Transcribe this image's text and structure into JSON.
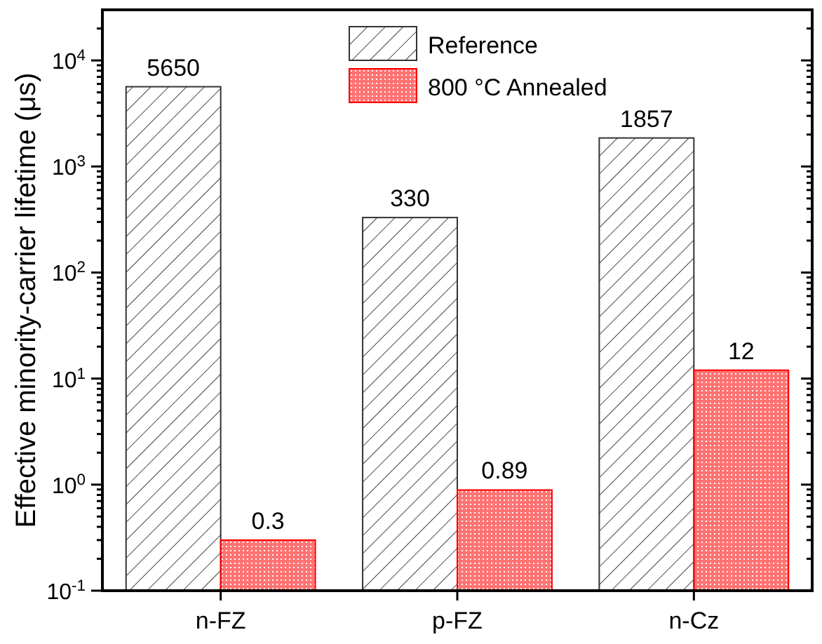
{
  "chart_data": {
    "type": "bar",
    "ylabel": "Effective minority-carrier lifetime (μs)",
    "categories": [
      "n-FZ",
      "p-FZ",
      "n-Cz"
    ],
    "series": [
      {
        "name": "Reference",
        "color": "#333333",
        "values": [
          5650,
          330,
          1857
        ]
      },
      {
        "name": "800 °C Annealed",
        "color": "#ff0000",
        "values": [
          0.3,
          0.89,
          12
        ]
      }
    ],
    "log": true,
    "ylim": [
      0.1,
      30000
    ],
    "yticks": [
      {
        "value": 0.1,
        "label": "10$^{-1}$"
      },
      {
        "value": 0.2,
        "label": null
      },
      {
        "value": 0.3,
        "label": null
      },
      {
        "value": 0.4,
        "label": null
      },
      {
        "value": 0.5,
        "label": null
      },
      {
        "value": 0.6,
        "label": null
      },
      {
        "value": 0.7,
        "label": null
      },
      {
        "value": 0.8,
        "label": null
      },
      {
        "value": 0.9,
        "label": null
      },
      {
        "value": 1,
        "label": "10$^{0}$"
      },
      {
        "value": 2,
        "label": null
      },
      {
        "value": 3,
        "label": null
      },
      {
        "value": 4,
        "label": null
      },
      {
        "value": 5,
        "label": null
      },
      {
        "value": 6,
        "label": null
      },
      {
        "value": 7,
        "label": null
      },
      {
        "value": 8,
        "label": null
      },
      {
        "value": 9,
        "label": null
      },
      {
        "value": 10,
        "label": "10$^{1}$"
      },
      {
        "value": 20,
        "label": null
      },
      {
        "value": 30,
        "label": null
      },
      {
        "value": 40,
        "label": null
      },
      {
        "value": 50,
        "label": null
      },
      {
        "value": 60,
        "label": null
      },
      {
        "value": 70,
        "label": null
      },
      {
        "value": 80,
        "label": null
      },
      {
        "value": 90,
        "label": null
      },
      {
        "value": 100,
        "label": "10$^{2}$"
      },
      {
        "value": 200,
        "label": null
      },
      {
        "value": 300,
        "label": null
      },
      {
        "value": 400,
        "label": null
      },
      {
        "value": 500,
        "label": null
      },
      {
        "value": 600,
        "label": null
      },
      {
        "value": 700,
        "label": null
      },
      {
        "value": 800,
        "label": null
      },
      {
        "value": 900,
        "label": null
      },
      {
        "value": 1000,
        "label": "10$^{3}$"
      },
      {
        "value": 2000,
        "label": null
      },
      {
        "value": 3000,
        "label": null
      },
      {
        "value": 4000,
        "label": null
      },
      {
        "value": 5000,
        "label": null
      },
      {
        "value": 6000,
        "label": null
      },
      {
        "value": 7000,
        "label": null
      },
      {
        "value": 8000,
        "label": null
      },
      {
        "value": 9000,
        "label": null
      },
      {
        "value": 10000,
        "label": "10$^{4}$"
      },
      {
        "value": 20000,
        "label": null
      }
    ],
    "data_labels": true,
    "legend": "top right",
    "grid": false
  }
}
